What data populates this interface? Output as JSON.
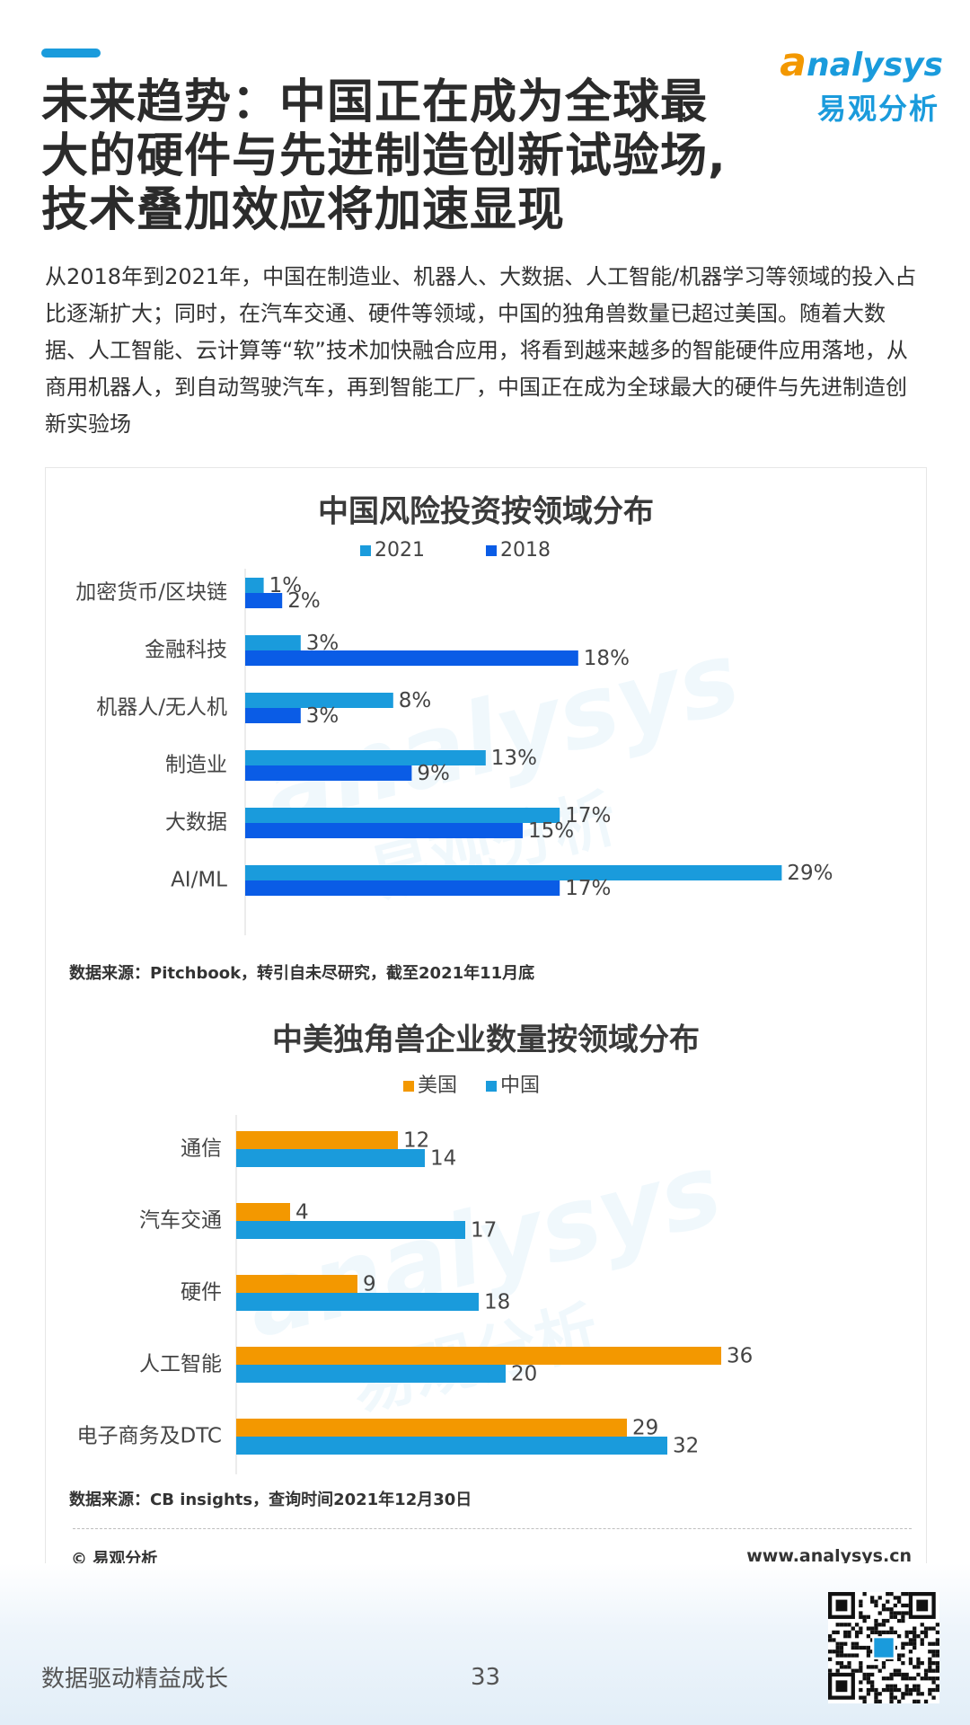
{
  "header": {
    "title_lines": [
      "未来趋势：中国正在成为全球最",
      "大的硬件与先进制造创新试验场,",
      "技术叠加效应将加速显现"
    ],
    "logo_brand_initial": "a",
    "logo_brand_rest": "nalysys",
    "logo_cn": "易观分析"
  },
  "description": "从2018年到2021年，中国在制造业、机器人、大数据、人工智能/机器学习等领域的投入占比逐渐扩大；同时，在汽车交通、硬件等领域，中国的独角兽数量已超过美国。随着大数据、人工智能、云计算等“软”技术加快融合应用，将看到越来越多的智能硬件应用落地，从商用机器人，到自动驾驶汽车，再到智能工厂，中国正在成为全球最大的硬件与先进制造创新实验场",
  "colors": {
    "accent": "#1a9bdc",
    "series_2021": "#1a9bdc",
    "series_2018": "#0a5ce6",
    "series_us": "#f39800",
    "series_cn": "#1a9bdc"
  },
  "chart_data": [
    {
      "type": "bar",
      "orientation": "horizontal",
      "title": "中国风险投资按领域分布",
      "categories": [
        "加密货币/区块链",
        "金融科技",
        "机器人/无人机",
        "制造业",
        "大数据",
        "AI/ML"
      ],
      "series": [
        {
          "name": "2021",
          "values": [
            1,
            3,
            8,
            13,
            17,
            29
          ],
          "labels": [
            "1%",
            "3%",
            "8%",
            "13%",
            "17%",
            "29%"
          ]
        },
        {
          "name": "2018",
          "values": [
            2,
            18,
            3,
            9,
            15,
            17
          ],
          "labels": [
            "2%",
            "18%",
            "3%",
            "9%",
            "15%",
            "17%"
          ]
        }
      ],
      "xlim": [
        0,
        30
      ],
      "legend": "top",
      "grid": false,
      "source": "数据来源：Pitchbook，转引自未尽研究，截至2021年11月底"
    },
    {
      "type": "bar",
      "orientation": "horizontal",
      "title": "中美独角兽企业数量按领域分布",
      "categories": [
        "通信",
        "汽车交通",
        "硬件",
        "人工智能",
        "电子商务及DTC"
      ],
      "series": [
        {
          "name": "美国",
          "values": [
            12,
            4,
            9,
            36,
            29
          ],
          "labels": [
            "12",
            "4",
            "9",
            "36",
            "29"
          ]
        },
        {
          "name": "中国",
          "values": [
            14,
            17,
            18,
            20,
            32
          ],
          "labels": [
            "14",
            "17",
            "18",
            "20",
            "32"
          ]
        }
      ],
      "xlim": [
        0,
        36
      ],
      "legend": "top",
      "grid": false,
      "source": "数据来源：CB insights，查询时间2021年12月30日"
    }
  ],
  "footer": {
    "copyright": "© 易观分析",
    "site": "www.analysys.cn",
    "slogan": "数据驱动精益成长",
    "page_number": "33"
  }
}
